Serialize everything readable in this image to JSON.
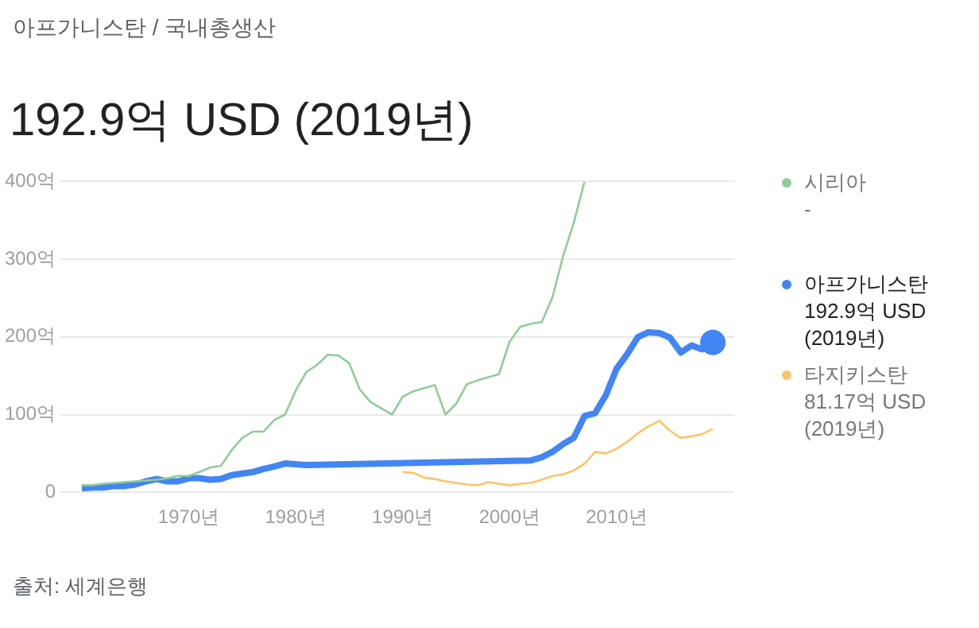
{
  "chart_data": {
    "type": "line",
    "subtitle": "아프가니스탄 / 국내총생산",
    "title": "192.9억 USD (2019년)",
    "annotations": [
      "-",
      "192.9억 USD (2019년)",
      "81.17억 USD (2019년)",
      "출처: 세계은행"
    ],
    "series": [
      {
        "name": "시리아",
        "color": "#8fcc98",
        "x": [
          1960,
          1961,
          1962,
          1963,
          1964,
          1965,
          1966,
          1967,
          1968,
          1969,
          1970,
          1971,
          1972,
          1973,
          1974,
          1975,
          1976,
          1977,
          1978,
          1979,
          1980,
          1981,
          1982,
          1983,
          1984,
          1985,
          1986,
          1987,
          1988,
          1989,
          1990,
          1991,
          1992,
          1993,
          1994,
          1995,
          1996,
          1997,
          1998,
          1999,
          2000,
          2001,
          2002,
          2003,
          2004,
          2005,
          2006,
          2007
        ],
        "values": [
          9,
          9,
          11,
          12,
          13,
          14,
          15,
          16,
          18,
          21,
          21,
          26,
          32,
          34,
          54,
          70,
          78,
          78,
          93,
          100,
          131,
          155,
          164,
          177,
          176,
          166,
          132,
          116,
          108,
          100,
          123,
          130,
          134,
          138,
          100,
          114,
          139,
          144,
          148,
          152,
          194,
          213,
          217,
          219,
          251,
          304,
          347,
          400
        ]
      },
      {
        "name": "아프가니스탄",
        "color": "#4285f4",
        "x": [
          1960,
          1961,
          1962,
          1963,
          1964,
          1965,
          1966,
          1967,
          1968,
          1969,
          1970,
          1971,
          1972,
          1973,
          1974,
          1975,
          1976,
          1977,
          1978,
          1979,
          1980,
          1981,
          2002,
          2003,
          2004,
          2005,
          2006,
          2007,
          2008,
          2009,
          2010,
          2011,
          2012,
          2013,
          2014,
          2015,
          2016,
          2017,
          2018,
          2019
        ],
        "values": [
          5,
          6,
          6,
          8,
          8,
          10,
          14,
          17,
          14,
          14,
          18,
          18,
          16,
          17,
          22,
          24,
          26,
          30,
          33,
          37,
          36,
          35,
          41,
          45,
          52,
          62,
          70,
          98,
          102,
          125,
          159,
          178,
          200,
          206,
          205,
          199,
          180,
          189,
          184,
          192.9
        ]
      },
      {
        "name": "타지키스탄",
        "color": "#fbc46a",
        "x": [
          1990,
          1991,
          1992,
          1993,
          1994,
          1995,
          1996,
          1997,
          1998,
          1999,
          2000,
          2001,
          2002,
          2003,
          2004,
          2005,
          2006,
          2007,
          2008,
          2009,
          2010,
          2011,
          2012,
          2013,
          2014,
          2015,
          2016,
          2017,
          2018,
          2019
        ],
        "values": [
          26,
          25,
          19,
          17,
          14,
          12,
          10,
          9,
          13,
          11,
          9,
          11,
          12,
          16,
          21,
          23,
          28,
          37,
          52,
          50,
          56,
          65,
          76,
          85,
          92,
          79,
          70,
          72,
          75,
          81.17
        ]
      }
    ],
    "xlim": [
      1958,
      2021
    ],
    "xticks": [
      {
        "value": 1970,
        "label": "1970년"
      },
      {
        "value": 1980,
        "label": "1980년"
      },
      {
        "value": 1990,
        "label": "1990년"
      },
      {
        "value": 2000,
        "label": "2000년"
      },
      {
        "value": 2010,
        "label": "2010년"
      }
    ],
    "ylim": [
      0,
      400
    ],
    "yticks": [
      0,
      {
        "value": 100,
        "label": "100억"
      },
      {
        "value": 200,
        "label": "200억"
      },
      {
        "value": 300,
        "label": "300억"
      },
      {
        "value": 400,
        "label": "400억"
      }
    ],
    "grid": "y",
    "legend": "right"
  }
}
